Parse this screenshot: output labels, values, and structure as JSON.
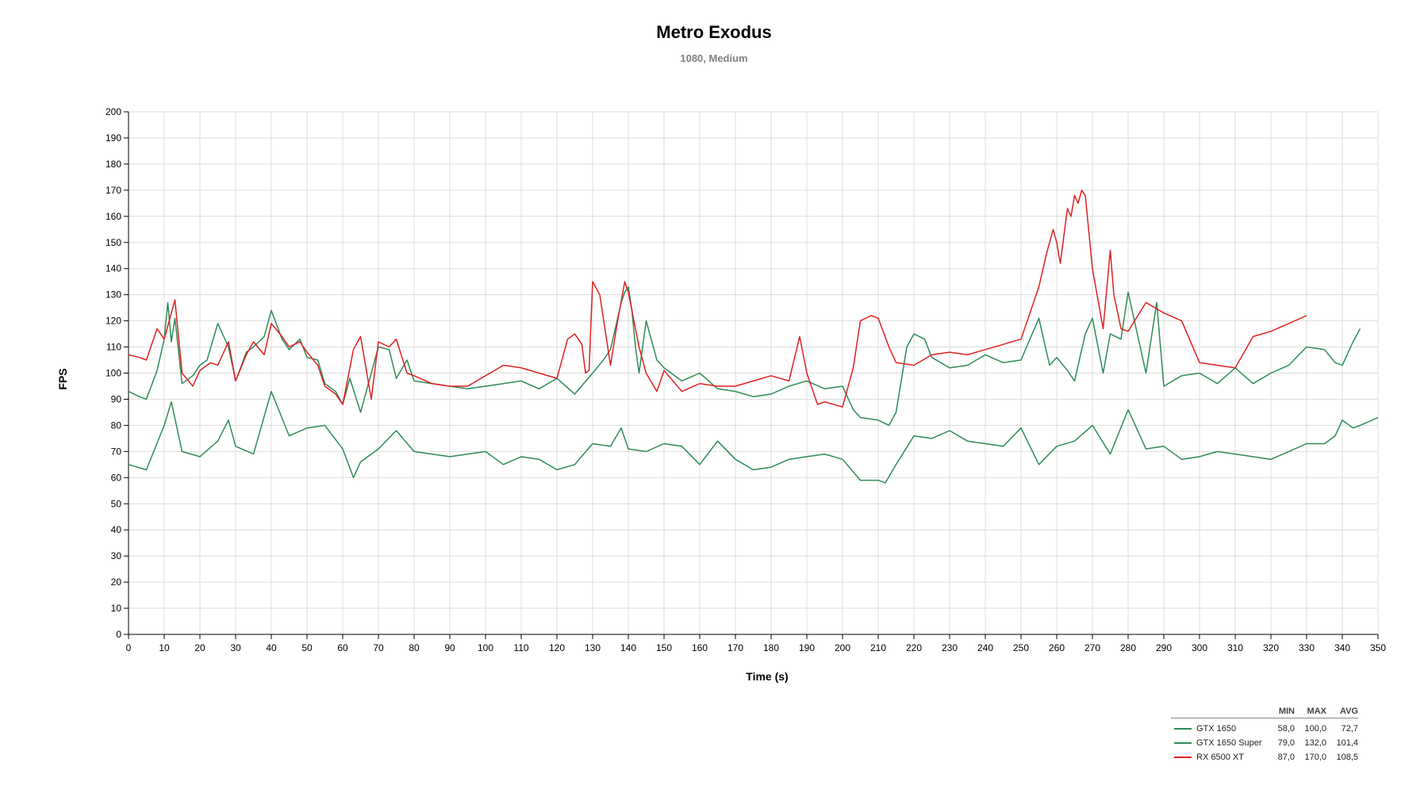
{
  "chart_data": {
    "type": "line",
    "title": "Metro Exodus",
    "subtitle": "1080, Medium",
    "xlabel": "Time (s)",
    "ylabel": "FPS",
    "xlim": [
      0,
      350
    ],
    "ylim": [
      0,
      200
    ],
    "xticks": [
      0,
      10,
      20,
      30,
      40,
      50,
      60,
      70,
      80,
      90,
      100,
      110,
      120,
      130,
      140,
      150,
      160,
      170,
      180,
      190,
      200,
      210,
      220,
      230,
      240,
      250,
      260,
      270,
      280,
      290,
      300,
      310,
      320,
      330,
      340,
      350
    ],
    "yticks": [
      0,
      10,
      20,
      30,
      40,
      50,
      60,
      70,
      80,
      90,
      100,
      110,
      120,
      130,
      140,
      150,
      160,
      170,
      180,
      190,
      200
    ],
    "grid": true,
    "legend_position": "bottom-right",
    "legend_columns": [
      "MIN",
      "MAX",
      "AVG"
    ],
    "series": [
      {
        "name": "GTX 1650",
        "color": "#2e8b57",
        "min": "58,0",
        "max": "100,0",
        "avg": "72,7",
        "x": [
          0,
          5,
          10,
          12,
          15,
          20,
          25,
          28,
          30,
          35,
          40,
          45,
          50,
          55,
          60,
          63,
          65,
          70,
          75,
          80,
          85,
          90,
          95,
          100,
          105,
          110,
          115,
          120,
          125,
          130,
          135,
          138,
          140,
          145,
          150,
          155,
          160,
          165,
          170,
          175,
          180,
          185,
          190,
          195,
          200,
          205,
          210,
          212,
          215,
          220,
          225,
          230,
          235,
          240,
          245,
          250,
          255,
          260,
          265,
          270,
          275,
          280,
          285,
          290,
          295,
          300,
          305,
          310,
          315,
          320,
          325,
          330,
          335,
          338,
          340,
          343,
          345,
          350
        ],
        "y": [
          65,
          63,
          80,
          89,
          70,
          68,
          74,
          82,
          72,
          69,
          93,
          76,
          79,
          80,
          71,
          60,
          66,
          71,
          78,
          70,
          69,
          68,
          69,
          70,
          65,
          68,
          67,
          63,
          65,
          73,
          72,
          79,
          71,
          70,
          73,
          72,
          65,
          74,
          67,
          63,
          64,
          67,
          68,
          69,
          67,
          59,
          59,
          58,
          65,
          76,
          75,
          78,
          74,
          73,
          72,
          79,
          65,
          72,
          74,
          80,
          69,
          86,
          71,
          72,
          67,
          68,
          70,
          69,
          68,
          67,
          70,
          73,
          73,
          76,
          82,
          79,
          80,
          83
        ]
      },
      {
        "name": "GTX 1650 Super",
        "color": "#2e8b57",
        "min": "79,0",
        "max": "132,0",
        "avg": "101,4",
        "x": [
          0,
          3,
          5,
          8,
          10,
          11,
          12,
          13,
          15,
          18,
          20,
          22,
          25,
          28,
          30,
          33,
          35,
          38,
          40,
          43,
          45,
          48,
          50,
          53,
          55,
          58,
          60,
          62,
          65,
          68,
          70,
          73,
          75,
          78,
          80,
          85,
          90,
          95,
          100,
          105,
          110,
          115,
          120,
          125,
          130,
          133,
          135,
          138,
          139,
          140,
          141,
          142,
          143,
          145,
          148,
          150,
          155,
          160,
          165,
          170,
          175,
          180,
          185,
          190,
          195,
          200,
          203,
          205,
          210,
          213,
          215,
          218,
          220,
          223,
          225,
          230,
          235,
          240,
          245,
          250,
          255,
          258,
          260,
          263,
          265,
          268,
          270,
          273,
          275,
          278,
          280,
          285,
          288,
          290,
          295,
          300,
          305,
          310,
          315,
          320,
          325,
          330,
          335,
          338,
          340,
          343,
          345
        ],
        "y": [
          93,
          91,
          90,
          101,
          113,
          127,
          112,
          121,
          96,
          99,
          103,
          105,
          119,
          110,
          97,
          108,
          110,
          114,
          124,
          113,
          109,
          113,
          106,
          105,
          96,
          93,
          88,
          98,
          85,
          100,
          110,
          109,
          98,
          105,
          97,
          96,
          95,
          94,
          95,
          96,
          97,
          94,
          98,
          92,
          100,
          105,
          109,
          127,
          131,
          133,
          124,
          110,
          100,
          120,
          105,
          102,
          97,
          100,
          94,
          93,
          91,
          92,
          95,
          97,
          94,
          95,
          86,
          83,
          82,
          80,
          85,
          110,
          115,
          113,
          106,
          102,
          103,
          107,
          104,
          105,
          121,
          103,
          106,
          101,
          97,
          115,
          121,
          100,
          115,
          113,
          131,
          100,
          127,
          95,
          99,
          100,
          96,
          102,
          96,
          100,
          103,
          110,
          109,
          104,
          103,
          112,
          117
        ]
      },
      {
        "name": "RX 6500 XT",
        "color": "#e02020",
        "min": "87,0",
        "max": "170,0",
        "avg": "108,5",
        "x": [
          0,
          3,
          5,
          8,
          10,
          13,
          15,
          18,
          20,
          23,
          25,
          28,
          30,
          33,
          35,
          38,
          40,
          43,
          45,
          48,
          50,
          53,
          55,
          58,
          60,
          63,
          65,
          68,
          70,
          73,
          75,
          78,
          80,
          85,
          90,
          95,
          100,
          105,
          110,
          115,
          120,
          123,
          125,
          127,
          128,
          129,
          130,
          132,
          135,
          137,
          139,
          140,
          143,
          145,
          148,
          150,
          155,
          160,
          165,
          170,
          175,
          180,
          185,
          188,
          190,
          193,
          195,
          200,
          203,
          205,
          208,
          210,
          213,
          215,
          220,
          225,
          230,
          235,
          240,
          245,
          250,
          253,
          255,
          257,
          259,
          260,
          261,
          263,
          264,
          265,
          266,
          267,
          268,
          270,
          273,
          275,
          276,
          278,
          280,
          285,
          290,
          295,
          300,
          305,
          310,
          315,
          320,
          325,
          330
        ],
        "y": [
          107,
          106,
          105,
          117,
          113,
          128,
          100,
          95,
          101,
          104,
          103,
          112,
          97,
          107,
          112,
          107,
          119,
          114,
          110,
          112,
          108,
          103,
          95,
          92,
          88,
          109,
          114,
          90,
          112,
          110,
          113,
          100,
          99,
          96,
          95,
          95,
          99,
          103,
          102,
          100,
          98,
          113,
          115,
          111,
          100,
          101,
          135,
          130,
          103,
          120,
          135,
          131,
          110,
          100,
          93,
          101,
          93,
          96,
          95,
          95,
          97,
          99,
          97,
          114,
          100,
          88,
          89,
          87,
          102,
          120,
          122,
          121,
          110,
          104,
          103,
          107,
          108,
          107,
          109,
          111,
          113,
          125,
          133,
          145,
          155,
          150,
          142,
          163,
          160,
          168,
          165,
          170,
          168,
          140,
          117,
          147,
          130,
          117,
          116,
          127,
          123,
          120,
          104,
          103,
          102,
          114,
          116,
          119,
          122
        ]
      }
    ]
  }
}
